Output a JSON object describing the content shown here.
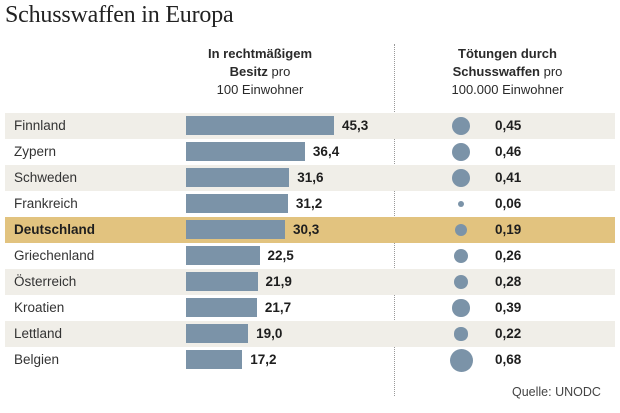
{
  "chart_data": {
    "type": "bar",
    "title": "Schusswaffen in Europa",
    "categories": [
      "Finnland",
      "Zypern",
      "Schweden",
      "Frankreich",
      "Deutschland",
      "Griechenland",
      "Österreich",
      "Kroatien",
      "Lettland",
      "Belgien"
    ],
    "highlight": "Deutschland",
    "highlight_color": "#e2c37f",
    "mark_color": "#7b93a8",
    "series": [
      {
        "name": "In rechtmäßigem Besitz pro 100 Einwohner",
        "header_bold": "In rechtmäßigem Besitz",
        "header_rest": "pro",
        "header_line3": "100 Einwohner",
        "kind": "bar",
        "values": [
          45.3,
          36.4,
          31.6,
          31.2,
          30.3,
          22.5,
          21.9,
          21.7,
          19.0,
          17.2
        ],
        "labels": [
          "45,3",
          "36,4",
          "31,6",
          "31,2",
          "30,3",
          "22,5",
          "21,9",
          "21,7",
          "19,0",
          "17,2"
        ]
      },
      {
        "name": "Tötungen durch Schusswaffen pro 100.000 Einwohner",
        "header_bold_1": "Tötungen durch",
        "header_bold_2": "Schusswaffen",
        "header_rest": "pro",
        "header_line3": "100.000 Einwohner",
        "kind": "bubble",
        "values": [
          0.45,
          0.46,
          0.41,
          0.06,
          0.19,
          0.26,
          0.28,
          0.39,
          0.22,
          0.68
        ],
        "labels": [
          "0,45",
          "0,46",
          "0,41",
          "0,06",
          "0,19",
          "0,26",
          "0,28",
          "0,39",
          "0,22",
          "0,68"
        ]
      }
    ],
    "source": "Quelle: UNODC"
  }
}
